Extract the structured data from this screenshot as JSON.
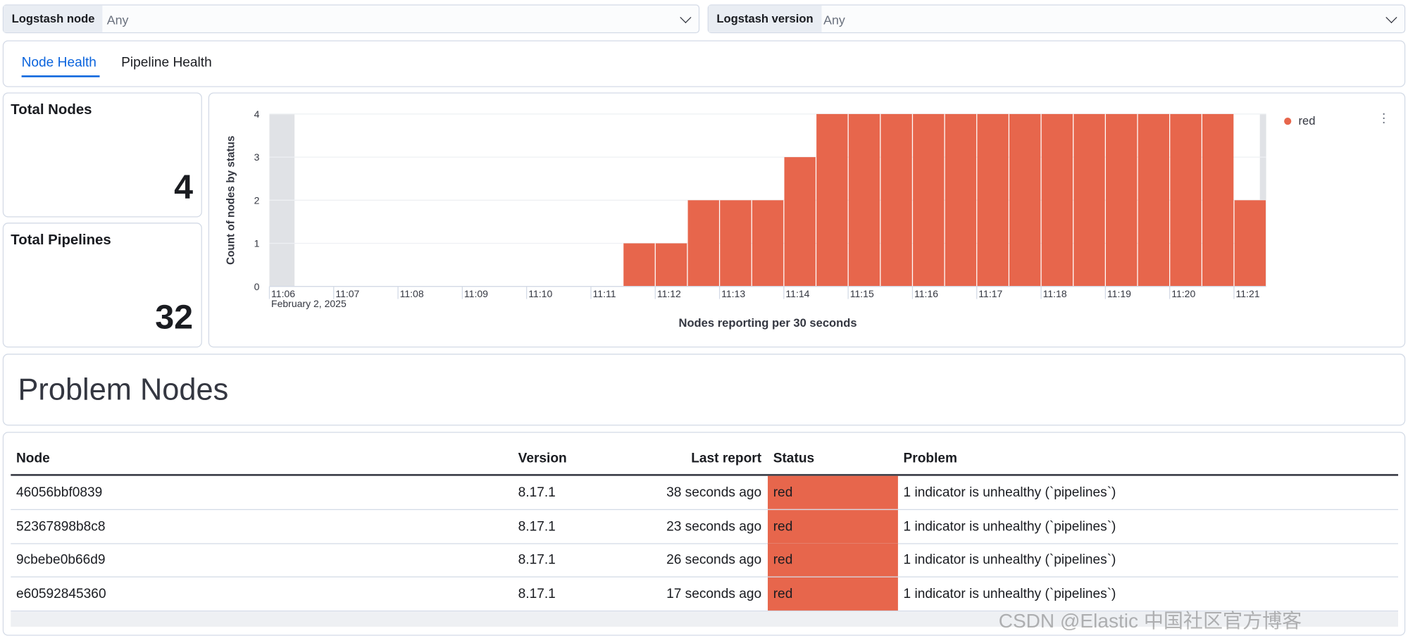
{
  "filters": [
    {
      "label": "Logstash node",
      "value": "Any"
    },
    {
      "label": "Logstash version",
      "value": "Any"
    }
  ],
  "tabs": [
    "Node Health",
    "Pipeline Health"
  ],
  "metrics": [
    {
      "title": "Total Nodes",
      "value": 4
    },
    {
      "title": "Total Pipelines",
      "value": 32
    }
  ],
  "chart_data": {
    "type": "bar",
    "x": [
      "11:11:30",
      "11:12",
      "11:12:30",
      "11:13",
      "11:13:30",
      "11:14",
      "11:14:30",
      "11:15",
      "11:15:30",
      "11:16",
      "11:16:30",
      "11:17",
      "11:17:30",
      "11:18",
      "11:18:30",
      "11:19",
      "11:19:30",
      "11:20",
      "11:20:30",
      "11:21"
    ],
    "series": [
      {
        "name": "red",
        "color": "#e7664c",
        "values": [
          1,
          1,
          2,
          2,
          2,
          3,
          4,
          4,
          4,
          4,
          4,
          4,
          4,
          4,
          4,
          4,
          4,
          4,
          4,
          2
        ]
      }
    ],
    "xlim": [
      "11:06",
      "11:21:30"
    ],
    "xticks": [
      "11:06",
      "11:07",
      "11:08",
      "11:09",
      "11:10",
      "11:11",
      "11:12",
      "11:13",
      "11:14",
      "11:15",
      "11:16",
      "11:17",
      "11:18",
      "11:19",
      "11:20",
      "11:21"
    ],
    "x_date_label": "February 2, 2025",
    "xlabel": "Nodes reporting per 30 seconds",
    "ylabel": "Count of nodes by status",
    "ylim": [
      0,
      4
    ],
    "yticks": [
      0,
      1,
      2,
      3,
      4
    ],
    "grid": true,
    "legend": "top-right"
  },
  "section_title": "Problem Nodes",
  "table": {
    "columns": [
      "Node",
      "Version",
      "Last report",
      "Status",
      "Problem"
    ],
    "rows": [
      [
        "46056bbf0839",
        "8.17.1",
        "38 seconds ago",
        "red",
        "1 indicator is unhealthy (`pipelines`)"
      ],
      [
        "52367898b8c8",
        "8.17.1",
        "23 seconds ago",
        "red",
        "1 indicator is unhealthy (`pipelines`)"
      ],
      [
        "9cbebe0b66d9",
        "8.17.1",
        "26 seconds ago",
        "red",
        "1 indicator is unhealthy (`pipelines`)"
      ],
      [
        "e60592845360",
        "8.17.1",
        "17 seconds ago",
        "red",
        "1 indicator is unhealthy (`pipelines`)"
      ]
    ]
  },
  "watermark": "CSDN @Elastic 中国社区官方博客"
}
